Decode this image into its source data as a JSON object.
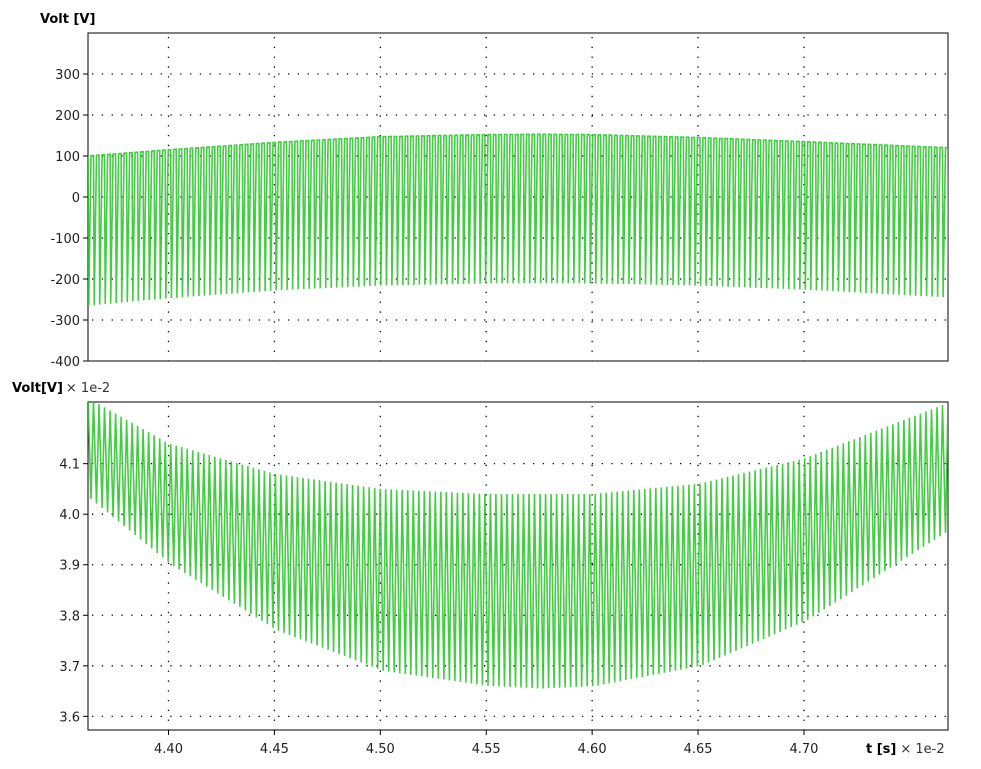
{
  "chart_data": [
    {
      "type": "line",
      "ylabel": "Volt [V]",
      "ylabel_scale": "",
      "xlim": [
        4.362,
        4.768
      ],
      "ylim": [
        -400,
        400
      ],
      "yticks": [
        -400,
        -300,
        -200,
        -100,
        0,
        100,
        200,
        300
      ],
      "ytick_labels": [
        "-400",
        "-300",
        "-200",
        "-100",
        "0",
        "100",
        "200",
        "300"
      ],
      "xgrid": [
        4.4,
        4.45,
        4.5,
        4.55,
        4.6,
        4.65,
        4.7
      ],
      "grid": true,
      "series_color": "#22c422",
      "envelope": {
        "x": [
          4.362,
          4.4,
          4.45,
          4.5,
          4.55,
          4.575,
          4.6,
          4.65,
          4.7,
          4.768
        ],
        "upper": [
          100,
          115,
          133,
          147,
          152,
          153,
          152,
          145,
          135,
          120
        ],
        "lower": [
          -265,
          -247,
          -228,
          -216,
          -211,
          -210,
          -211,
          -216,
          -226,
          -245
        ]
      }
    },
    {
      "type": "line",
      "ylabel": "Volt[V]",
      "ylabel_scale": "× 1e-2",
      "xlabel": "t [s]",
      "xlabel_scale": "× 1e-2",
      "xlim": [
        4.362,
        4.768
      ],
      "ylim": [
        3.573,
        4.222
      ],
      "yticks": [
        3.6,
        3.7,
        3.8,
        3.9,
        4.0,
        4.1
      ],
      "ytick_labels": [
        "3.6",
        "3.7",
        "3.8",
        "3.9",
        "4.0",
        "4.1"
      ],
      "xticks": [
        4.4,
        4.45,
        4.5,
        4.55,
        4.6,
        4.65,
        4.7
      ],
      "xtick_labels": [
        "4.40",
        "4.45",
        "4.50",
        "4.55",
        "4.60",
        "4.65",
        "4.70"
      ],
      "xgrid": [
        4.4,
        4.45,
        4.5,
        4.55,
        4.6,
        4.65,
        4.7
      ],
      "grid": true,
      "series_color": "#22c422",
      "envelope": {
        "x": [
          4.362,
          4.4,
          4.45,
          4.5,
          4.55,
          4.575,
          4.6,
          4.65,
          4.7,
          4.768
        ],
        "upper": [
          4.23,
          4.14,
          4.08,
          4.05,
          4.04,
          4.04,
          4.04,
          4.06,
          4.11,
          4.22
        ],
        "lower": [
          4.03,
          3.9,
          3.77,
          3.69,
          3.66,
          3.655,
          3.66,
          3.7,
          3.79,
          3.97
        ]
      }
    }
  ]
}
